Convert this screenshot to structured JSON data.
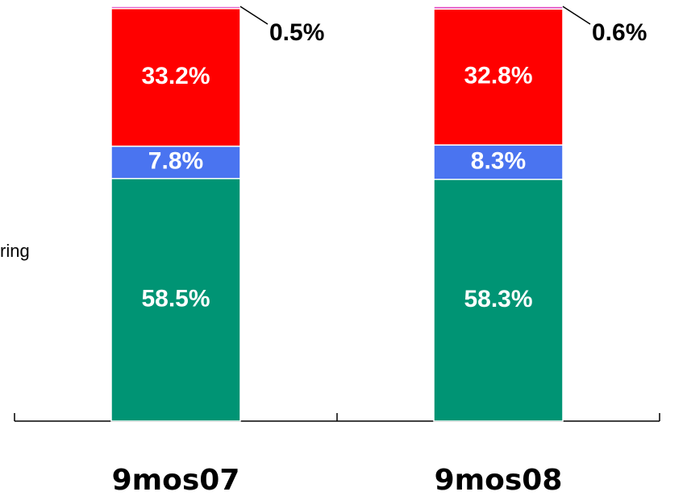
{
  "chart_data": {
    "type": "stacked_bar",
    "categories": [
      "9mos07",
      "9mos08"
    ],
    "series": [
      {
        "color": "#009474",
        "values": [
          58.5,
          58.3
        ],
        "value_labels": [
          "58.5%",
          "58.3%"
        ]
      },
      {
        "color": "#4a74f0",
        "values": [
          7.8,
          8.3
        ],
        "value_labels": [
          "7.8%",
          "8.3%"
        ]
      },
      {
        "color": "#ff0000",
        "values": [
          33.2,
          32.8
        ],
        "value_labels": [
          "33.2%",
          "32.8%"
        ]
      },
      {
        "color": "#e040c0",
        "values": [
          0.5,
          0.6
        ],
        "value_labels": [
          "0.5%",
          "0.6%"
        ]
      }
    ],
    "ylim": [
      0,
      100
    ],
    "annotations": [
      "ring"
    ]
  }
}
